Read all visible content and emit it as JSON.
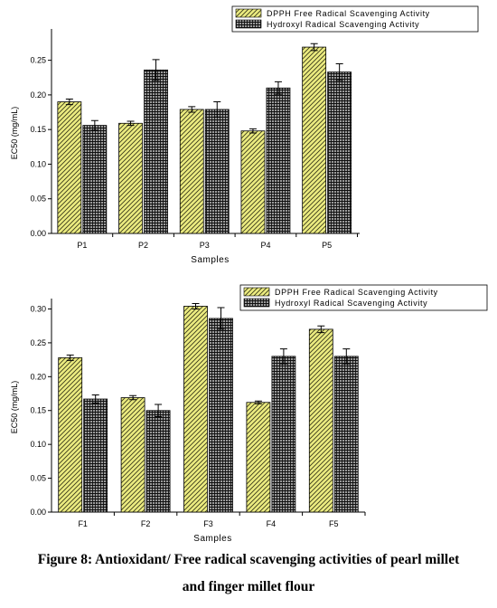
{
  "colors": {
    "dpph_fill": "#ecec80",
    "hydroxyl_fill": "#9a9a9a",
    "axis": "#000000",
    "error_bar": "#000000"
  },
  "chart_data": [
    {
      "type": "bar",
      "xlabel": "Samples",
      "ylabel": "EC50 (mg/mL)",
      "categories": [
        "P1",
        "P2",
        "P3",
        "P4",
        "P5"
      ],
      "ylim": [
        0,
        0.29
      ],
      "yticks": [
        "0.00",
        "0.05",
        "0.10",
        "0.15",
        "0.20",
        "0.25"
      ],
      "grid": false,
      "legend_position": "top-right",
      "series": [
        {
          "name": "DPPH Free Radical Scavenging Activity",
          "pattern": "diagonal-hatch",
          "values": [
            0.19,
            0.159,
            0.179,
            0.148,
            0.269
          ],
          "errors": [
            0.004,
            0.003,
            0.004,
            0.003,
            0.005
          ]
        },
        {
          "name": "Hydroxyl Radical Scavenging Activity",
          "pattern": "crosshatch",
          "values": [
            0.156,
            0.236,
            0.179,
            0.21,
            0.233
          ],
          "errors": [
            0.007,
            0.015,
            0.011,
            0.009,
            0.012
          ]
        }
      ]
    },
    {
      "type": "bar",
      "xlabel": "Samples",
      "ylabel": "EC50 (mg/mL)",
      "categories": [
        "F1",
        "F2",
        "F3",
        "F4",
        "F5"
      ],
      "ylim": [
        0,
        0.31
      ],
      "yticks": [
        "0.00",
        "0.05",
        "0.10",
        "0.15",
        "0.20",
        "0.25",
        "0.30"
      ],
      "grid": false,
      "legend_position": "top-right",
      "series": [
        {
          "name": "DPPH Free Radical Scavenging Activity",
          "pattern": "diagonal-hatch",
          "values": [
            0.228,
            0.169,
            0.304,
            0.162,
            0.27
          ],
          "errors": [
            0.004,
            0.003,
            0.004,
            0.002,
            0.005
          ]
        },
        {
          "name": "Hydroxyl Radical Scavenging Activity",
          "pattern": "crosshatch",
          "values": [
            0.167,
            0.15,
            0.286,
            0.23,
            0.23
          ],
          "errors": [
            0.006,
            0.009,
            0.016,
            0.011,
            0.011
          ]
        }
      ]
    }
  ],
  "caption": {
    "line1": "Figure 8: Antioxidant/ Free radical scavenging activities of pearl millet",
    "line2": "and finger millet flour"
  }
}
